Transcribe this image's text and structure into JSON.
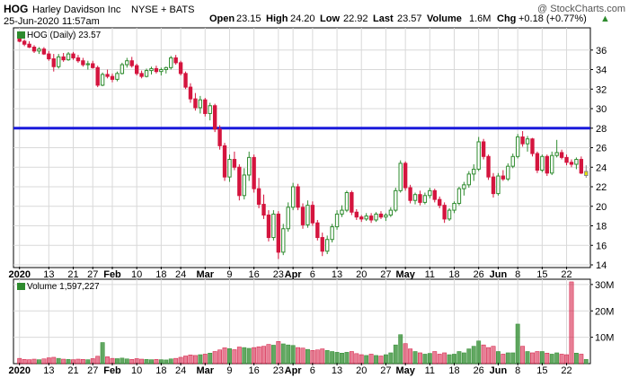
{
  "header": {
    "ticker": "HOG",
    "company": "Harley Davidson Inc",
    "exchange": "NYSE + BATS",
    "datetime": "25-Jun-2020 11:57am",
    "watermark": "@ StockCharts.com",
    "open_label": "Open",
    "open_value": "23.15",
    "high_label": "High",
    "high_value": "24.20",
    "low_label": "Low",
    "low_value": "22.92",
    "last_label": "Last",
    "last_value": "23.57",
    "volume_label": "Volume",
    "volume_value": "1.6M",
    "chg_label": "Chg",
    "chg_value": "+0.18 (+0.77%)",
    "chg_arrow": "▲"
  },
  "price_legend": "HOG (Daily) 23.57",
  "volume_legend": "Volume 1,597,227",
  "colors": {
    "up": "#2e8b2e",
    "down": "#d4153e",
    "resistance": "#1a1adb",
    "grid": "#d9d9d9",
    "last_candle": "#e8e800",
    "chg_arrow": "#2e8b2e"
  },
  "chart_data": {
    "type": "candlestick",
    "title": "HOG (Daily)",
    "price_ylim": [
      14,
      38
    ],
    "price_yticks": [
      14,
      16,
      18,
      20,
      22,
      24,
      26,
      28,
      30,
      32,
      34,
      36
    ],
    "volume_ylim": [
      0,
      32
    ],
    "volume_yticks": [
      10,
      20,
      30
    ],
    "volume_unit": "M",
    "horizontal_line": 28.0,
    "x_labels": [
      "2020",
      "13",
      "21",
      "27",
      "Feb",
      "10",
      "18",
      "24",
      "Mar",
      "9",
      "16",
      "23",
      "Apr",
      "6",
      "13",
      "20",
      "27",
      "May",
      "11",
      "18",
      "26",
      "Jun",
      "8",
      "15",
      "22"
    ],
    "x_label_bold": [
      "2020",
      "Feb",
      "Mar",
      "Apr",
      "May",
      "Jun"
    ],
    "x_label_index": [
      0,
      6,
      11,
      15,
      19,
      24,
      29,
      33,
      38,
      43,
      48,
      53,
      56,
      60,
      65,
      70,
      75,
      79,
      84,
      89,
      94,
      98,
      102,
      107,
      112
    ],
    "candles": [
      {
        "o": 37.2,
        "h": 37.5,
        "l": 36.8,
        "c": 36.9,
        "v": 2.0
      },
      {
        "o": 36.9,
        "h": 37.1,
        "l": 36.4,
        "c": 36.6,
        "v": 1.6
      },
      {
        "o": 36.6,
        "h": 36.9,
        "l": 36.2,
        "c": 36.3,
        "v": 1.5
      },
      {
        "o": 36.3,
        "h": 36.5,
        "l": 35.7,
        "c": 35.9,
        "v": 1.7
      },
      {
        "o": 35.9,
        "h": 36.3,
        "l": 35.6,
        "c": 36.1,
        "v": 1.5
      },
      {
        "o": 36.1,
        "h": 36.3,
        "l": 35.5,
        "c": 35.6,
        "v": 1.8
      },
      {
        "o": 35.6,
        "h": 35.9,
        "l": 34.9,
        "c": 35.1,
        "v": 2.2
      },
      {
        "o": 35.1,
        "h": 35.6,
        "l": 33.8,
        "c": 34.3,
        "v": 2.4
      },
      {
        "o": 34.3,
        "h": 35.6,
        "l": 34.1,
        "c": 35.3,
        "v": 2.0
      },
      {
        "o": 35.3,
        "h": 35.7,
        "l": 34.8,
        "c": 35.0,
        "v": 1.7
      },
      {
        "o": 35.0,
        "h": 35.8,
        "l": 34.9,
        "c": 35.6,
        "v": 1.6
      },
      {
        "o": 35.6,
        "h": 35.8,
        "l": 35.0,
        "c": 35.2,
        "v": 1.5
      },
      {
        "o": 35.2,
        "h": 35.5,
        "l": 34.7,
        "c": 34.9,
        "v": 1.7
      },
      {
        "o": 34.9,
        "h": 35.2,
        "l": 34.3,
        "c": 34.5,
        "v": 1.6
      },
      {
        "o": 34.5,
        "h": 34.9,
        "l": 34.0,
        "c": 34.6,
        "v": 1.5
      },
      {
        "o": 34.6,
        "h": 34.9,
        "l": 34.1,
        "c": 34.2,
        "v": 1.9
      },
      {
        "o": 34.2,
        "h": 34.4,
        "l": 32.2,
        "c": 32.4,
        "v": 2.8
      },
      {
        "o": 32.4,
        "h": 33.7,
        "l": 32.3,
        "c": 33.5,
        "v": 8.0
      },
      {
        "o": 33.5,
        "h": 34.0,
        "l": 33.1,
        "c": 33.3,
        "v": 2.6
      },
      {
        "o": 33.3,
        "h": 33.6,
        "l": 32.7,
        "c": 33.0,
        "v": 2.0
      },
      {
        "o": 33.0,
        "h": 33.8,
        "l": 32.8,
        "c": 33.6,
        "v": 1.9
      },
      {
        "o": 33.6,
        "h": 34.7,
        "l": 33.5,
        "c": 34.5,
        "v": 2.1
      },
      {
        "o": 34.5,
        "h": 35.2,
        "l": 34.2,
        "c": 34.9,
        "v": 1.8
      },
      {
        "o": 34.9,
        "h": 35.3,
        "l": 34.2,
        "c": 34.4,
        "v": 1.6
      },
      {
        "o": 34.4,
        "h": 34.6,
        "l": 33.4,
        "c": 33.6,
        "v": 1.9
      },
      {
        "o": 33.6,
        "h": 33.9,
        "l": 33.1,
        "c": 33.3,
        "v": 1.7
      },
      {
        "o": 33.3,
        "h": 34.1,
        "l": 33.2,
        "c": 33.9,
        "v": 1.6
      },
      {
        "o": 33.9,
        "h": 34.3,
        "l": 33.5,
        "c": 34.1,
        "v": 1.5
      },
      {
        "o": 34.1,
        "h": 34.4,
        "l": 33.6,
        "c": 33.8,
        "v": 1.6
      },
      {
        "o": 33.8,
        "h": 34.2,
        "l": 33.4,
        "c": 34.0,
        "v": 1.5
      },
      {
        "o": 34.0,
        "h": 34.3,
        "l": 33.6,
        "c": 34.2,
        "v": 1.4
      },
      {
        "o": 34.2,
        "h": 35.4,
        "l": 34.0,
        "c": 35.2,
        "v": 1.8
      },
      {
        "o": 35.2,
        "h": 35.5,
        "l": 34.5,
        "c": 34.7,
        "v": 2.0
      },
      {
        "o": 34.7,
        "h": 34.9,
        "l": 33.4,
        "c": 33.6,
        "v": 2.4
      },
      {
        "o": 33.6,
        "h": 33.8,
        "l": 32.0,
        "c": 32.2,
        "v": 2.9
      },
      {
        "o": 32.2,
        "h": 32.6,
        "l": 30.6,
        "c": 31.0,
        "v": 3.3
      },
      {
        "o": 31.0,
        "h": 31.6,
        "l": 29.8,
        "c": 30.1,
        "v": 3.1
      },
      {
        "o": 30.1,
        "h": 31.3,
        "l": 29.5,
        "c": 30.9,
        "v": 3.4
      },
      {
        "o": 30.9,
        "h": 31.1,
        "l": 29.2,
        "c": 29.5,
        "v": 3.6
      },
      {
        "o": 29.5,
        "h": 30.6,
        "l": 28.8,
        "c": 30.3,
        "v": 4.0
      },
      {
        "o": 30.3,
        "h": 30.5,
        "l": 27.6,
        "c": 27.9,
        "v": 4.6
      },
      {
        "o": 27.9,
        "h": 28.3,
        "l": 25.8,
        "c": 26.2,
        "v": 5.2
      },
      {
        "o": 26.2,
        "h": 26.5,
        "l": 22.6,
        "c": 23.0,
        "v": 6.0
      },
      {
        "o": 23.0,
        "h": 25.3,
        "l": 22.5,
        "c": 24.8,
        "v": 5.7
      },
      {
        "o": 24.8,
        "h": 25.6,
        "l": 23.7,
        "c": 24.0,
        "v": 5.3
      },
      {
        "o": 24.0,
        "h": 24.3,
        "l": 20.6,
        "c": 21.1,
        "v": 6.3
      },
      {
        "o": 21.1,
        "h": 23.9,
        "l": 20.7,
        "c": 23.2,
        "v": 6.1
      },
      {
        "o": 23.2,
        "h": 25.6,
        "l": 22.6,
        "c": 25.0,
        "v": 5.8
      },
      {
        "o": 25.0,
        "h": 25.3,
        "l": 21.4,
        "c": 21.8,
        "v": 6.1
      },
      {
        "o": 21.8,
        "h": 22.9,
        "l": 19.8,
        "c": 20.2,
        "v": 6.4
      },
      {
        "o": 20.2,
        "h": 21.2,
        "l": 18.7,
        "c": 19.1,
        "v": 6.6
      },
      {
        "o": 19.1,
        "h": 19.6,
        "l": 16.4,
        "c": 16.8,
        "v": 7.3
      },
      {
        "o": 16.8,
        "h": 19.6,
        "l": 16.5,
        "c": 19.2,
        "v": 7.0
      },
      {
        "o": 19.2,
        "h": 19.5,
        "l": 14.6,
        "c": 15.3,
        "v": 8.4
      },
      {
        "o": 15.3,
        "h": 18.2,
        "l": 15.0,
        "c": 17.7,
        "v": 7.5
      },
      {
        "o": 17.7,
        "h": 20.4,
        "l": 17.4,
        "c": 19.9,
        "v": 7.1
      },
      {
        "o": 19.9,
        "h": 22.4,
        "l": 19.6,
        "c": 22.0,
        "v": 6.9
      },
      {
        "o": 22.0,
        "h": 22.3,
        "l": 19.6,
        "c": 19.9,
        "v": 6.1
      },
      {
        "o": 19.9,
        "h": 20.3,
        "l": 17.7,
        "c": 18.1,
        "v": 5.9
      },
      {
        "o": 18.1,
        "h": 20.6,
        "l": 17.8,
        "c": 20.1,
        "v": 5.4
      },
      {
        "o": 20.1,
        "h": 20.5,
        "l": 18.0,
        "c": 18.3,
        "v": 5.0
      },
      {
        "o": 18.3,
        "h": 18.6,
        "l": 16.5,
        "c": 16.8,
        "v": 5.2
      },
      {
        "o": 16.8,
        "h": 17.3,
        "l": 14.9,
        "c": 15.4,
        "v": 5.6
      },
      {
        "o": 15.4,
        "h": 17.0,
        "l": 15.1,
        "c": 16.6,
        "v": 5.0
      },
      {
        "o": 16.6,
        "h": 18.2,
        "l": 16.3,
        "c": 17.9,
        "v": 4.6
      },
      {
        "o": 17.9,
        "h": 19.6,
        "l": 17.6,
        "c": 19.2,
        "v": 4.3
      },
      {
        "o": 19.2,
        "h": 20.1,
        "l": 18.9,
        "c": 19.6,
        "v": 4.0
      },
      {
        "o": 19.6,
        "h": 21.6,
        "l": 19.4,
        "c": 21.4,
        "v": 4.3
      },
      {
        "o": 21.4,
        "h": 21.6,
        "l": 19.1,
        "c": 19.4,
        "v": 4.6
      },
      {
        "o": 19.4,
        "h": 19.7,
        "l": 18.6,
        "c": 18.9,
        "v": 3.8
      },
      {
        "o": 18.9,
        "h": 19.1,
        "l": 18.4,
        "c": 18.7,
        "v": 3.4
      },
      {
        "o": 18.7,
        "h": 19.3,
        "l": 18.5,
        "c": 19.0,
        "v": 3.1
      },
      {
        "o": 19.0,
        "h": 19.3,
        "l": 18.3,
        "c": 18.6,
        "v": 3.6
      },
      {
        "o": 18.6,
        "h": 19.4,
        "l": 18.4,
        "c": 19.2,
        "v": 3.1
      },
      {
        "o": 19.2,
        "h": 19.5,
        "l": 18.7,
        "c": 18.9,
        "v": 2.9
      },
      {
        "o": 18.9,
        "h": 19.3,
        "l": 18.5,
        "c": 19.1,
        "v": 3.4
      },
      {
        "o": 19.1,
        "h": 19.9,
        "l": 18.9,
        "c": 19.6,
        "v": 4.1
      },
      {
        "o": 19.6,
        "h": 21.9,
        "l": 19.4,
        "c": 21.6,
        "v": 7.1
      },
      {
        "o": 21.6,
        "h": 24.7,
        "l": 21.4,
        "c": 24.4,
        "v": 11.0
      },
      {
        "o": 24.4,
        "h": 24.6,
        "l": 21.6,
        "c": 21.9,
        "v": 7.6
      },
      {
        "o": 21.9,
        "h": 22.2,
        "l": 20.3,
        "c": 20.6,
        "v": 5.6
      },
      {
        "o": 20.6,
        "h": 21.4,
        "l": 20.2,
        "c": 21.2,
        "v": 4.6
      },
      {
        "o": 21.2,
        "h": 21.6,
        "l": 20.1,
        "c": 20.4,
        "v": 4.1
      },
      {
        "o": 20.4,
        "h": 21.4,
        "l": 20.2,
        "c": 21.1,
        "v": 3.6
      },
      {
        "o": 21.1,
        "h": 21.9,
        "l": 20.8,
        "c": 21.6,
        "v": 3.9
      },
      {
        "o": 21.6,
        "h": 21.8,
        "l": 20.4,
        "c": 20.7,
        "v": 4.6
      },
      {
        "o": 20.7,
        "h": 21.0,
        "l": 19.8,
        "c": 20.1,
        "v": 3.6
      },
      {
        "o": 20.1,
        "h": 20.4,
        "l": 18.3,
        "c": 18.7,
        "v": 4.1
      },
      {
        "o": 18.7,
        "h": 19.8,
        "l": 18.5,
        "c": 19.6,
        "v": 3.4
      },
      {
        "o": 19.6,
        "h": 20.5,
        "l": 19.3,
        "c": 20.3,
        "v": 3.6
      },
      {
        "o": 20.3,
        "h": 22.0,
        "l": 20.1,
        "c": 21.8,
        "v": 4.6
      },
      {
        "o": 21.8,
        "h": 22.5,
        "l": 21.1,
        "c": 22.2,
        "v": 4.1
      },
      {
        "o": 22.2,
        "h": 23.6,
        "l": 21.9,
        "c": 23.3,
        "v": 5.6
      },
      {
        "o": 23.3,
        "h": 24.3,
        "l": 22.6,
        "c": 23.8,
        "v": 6.6
      },
      {
        "o": 23.8,
        "h": 27.1,
        "l": 23.6,
        "c": 26.6,
        "v": 8.6
      },
      {
        "o": 26.6,
        "h": 26.9,
        "l": 24.8,
        "c": 25.1,
        "v": 7.1
      },
      {
        "o": 25.1,
        "h": 25.3,
        "l": 22.7,
        "c": 23.0,
        "v": 6.1
      },
      {
        "o": 23.0,
        "h": 23.4,
        "l": 20.9,
        "c": 21.3,
        "v": 6.6
      },
      {
        "o": 21.3,
        "h": 23.4,
        "l": 21.1,
        "c": 23.1,
        "v": 4.6
      },
      {
        "o": 23.1,
        "h": 23.7,
        "l": 22.6,
        "c": 22.8,
        "v": 3.6
      },
      {
        "o": 22.8,
        "h": 24.4,
        "l": 22.6,
        "c": 24.1,
        "v": 4.1
      },
      {
        "o": 24.1,
        "h": 25.4,
        "l": 23.9,
        "c": 25.1,
        "v": 4.1
      },
      {
        "o": 25.1,
        "h": 27.4,
        "l": 24.9,
        "c": 27.1,
        "v": 15.0
      },
      {
        "o": 27.1,
        "h": 27.7,
        "l": 26.1,
        "c": 26.4,
        "v": 6.6
      },
      {
        "o": 26.4,
        "h": 27.2,
        "l": 25.6,
        "c": 26.9,
        "v": 4.6
      },
      {
        "o": 26.9,
        "h": 27.0,
        "l": 25.1,
        "c": 25.4,
        "v": 4.1
      },
      {
        "o": 25.4,
        "h": 25.6,
        "l": 23.4,
        "c": 23.7,
        "v": 4.6
      },
      {
        "o": 23.7,
        "h": 25.3,
        "l": 23.5,
        "c": 25.1,
        "v": 4.6
      },
      {
        "o": 25.1,
        "h": 25.3,
        "l": 23.1,
        "c": 23.4,
        "v": 4.0
      },
      {
        "o": 23.4,
        "h": 25.6,
        "l": 23.2,
        "c": 25.2,
        "v": 3.6
      },
      {
        "o": 25.2,
        "h": 26.8,
        "l": 25.0,
        "c": 25.5,
        "v": 4.1
      },
      {
        "o": 25.5,
        "h": 25.8,
        "l": 24.8,
        "c": 25.0,
        "v": 3.6
      },
      {
        "o": 25.0,
        "h": 25.3,
        "l": 24.2,
        "c": 24.5,
        "v": 3.4
      },
      {
        "o": 24.5,
        "h": 24.8,
        "l": 24.0,
        "c": 24.3,
        "v": 31.0
      },
      {
        "o": 24.3,
        "h": 25.0,
        "l": 23.8,
        "c": 24.8,
        "v": 4.0
      },
      {
        "o": 24.8,
        "h": 25.1,
        "l": 23.3,
        "c": 23.4,
        "v": 3.6
      },
      {
        "o": 23.15,
        "h": 24.2,
        "l": 22.92,
        "c": 23.57,
        "v": 1.6
      }
    ]
  }
}
